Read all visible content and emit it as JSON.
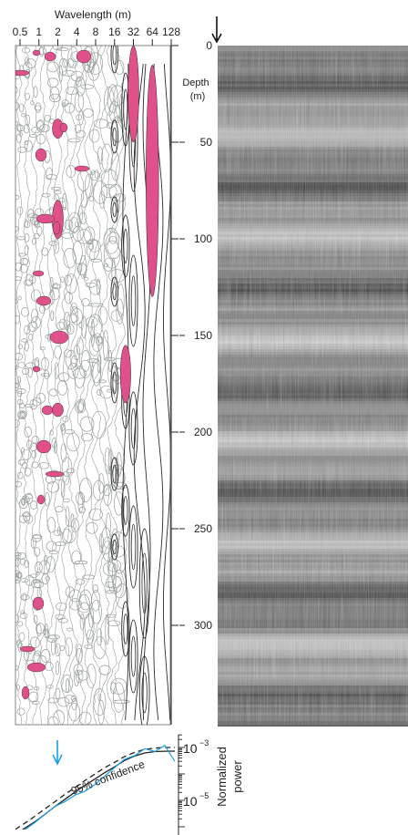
{
  "colors": {
    "significant_fill": "#e0508a",
    "contour_light": "#9aa09c",
    "contour_dark": "#2a2a2a",
    "spectrum_line": "#1aa0e0",
    "fit_line": "#222222",
    "arrow_blue": "#1aa0e0"
  },
  "chart_data": [
    {
      "type": "heatmap",
      "title": "",
      "xlabel": "Wavelength (m)",
      "ylabel": "Depth (m)",
      "x_scale": "log2",
      "x_ticks": [
        0.5,
        1,
        2,
        4,
        8,
        16,
        32,
        64,
        128
      ],
      "x_tick_labels": [
        "0.5",
        "1",
        "2",
        "4",
        "8",
        "16",
        "32",
        "64",
        "128"
      ],
      "xlim": [
        0.5,
        128
      ],
      "ylim": [
        0,
        340
      ],
      "y_ticks": [
        0,
        50,
        100,
        150,
        200,
        250,
        300
      ],
      "y_tick_labels": [
        "0",
        "50",
        "100",
        "150",
        "200",
        "250",
        "300"
      ],
      "significant_regions": [
        {
          "wavelength": 32,
          "depth_top": 0,
          "depth_bottom": 50
        },
        {
          "wavelength": 64,
          "depth_top": 10,
          "depth_bottom": 130
        },
        {
          "wavelength": 24,
          "depth_top": 155,
          "depth_bottom": 185
        },
        {
          "wavelength": 2,
          "depth_top": 38,
          "depth_bottom": 48
        },
        {
          "wavelength": 2,
          "depth_top": 80,
          "depth_bottom": 100
        },
        {
          "wavelength": 2,
          "depth_top": 185,
          "depth_bottom": 192
        }
      ]
    },
    {
      "type": "line",
      "title": "",
      "xlabel": "",
      "ylabel": "Normalized power",
      "y_scale": "log",
      "ylim": [
        3e-07,
        0.002
      ],
      "y_ticks": [
        "10^-3",
        "10^-5"
      ],
      "annotations": [
        "95% confidence"
      ],
      "x": [
        0.5,
        0.7,
        1,
        1.4,
        2,
        2.8,
        4,
        5.6,
        8,
        11,
        16,
        22,
        32,
        45,
        64,
        90,
        128
      ],
      "series": [
        {
          "values": [
            5e-07,
            8e-07,
            1.5e-06,
            3e-06,
            6e-06,
            9e-06,
            1.6e-05,
            2.2e-05,
            4e-05,
            8e-05,
            0.00018,
            0.00035,
            0.0005,
            0.0009,
            0.0007,
            0.0012,
            0.0003
          ]
        },
        {
          "values": [
            5e-07,
            9e-07,
            1.6e-06,
            3e-06,
            6e-06,
            1.1e-05,
            2.1e-05,
            3.7e-05,
            6.5e-05,
            0.00011,
            0.00019,
            0.00032,
            0.00048,
            0.00062,
            0.0007,
            0.00072,
            0.00073
          ]
        },
        {
          "values": [
            8e-07,
            1.4e-06,
            2.6e-06,
            4.8e-06,
            9.2e-06,
            1.7e-05,
            3.1e-05,
            5.6e-05,
            0.0001,
            0.00017,
            0.00028,
            0.00045,
            0.00066,
            0.00085,
            0.00095,
            0.001,
            0.001
          ]
        }
      ]
    }
  ],
  "header": {
    "x_axis_title": "Wavelength (m)",
    "depth_label_line1": "Depth",
    "depth_label_line2": "(m)"
  },
  "spectrum": {
    "confidence_label": "95% confidence",
    "power_label_line1": "Normalized",
    "power_label_line2": "power",
    "tick_top_base": "10",
    "tick_top_exp": "−3",
    "tick_bottom_base": "10",
    "tick_bottom_exp": "−5"
  },
  "core_image": {
    "name": "core-scan-image"
  }
}
